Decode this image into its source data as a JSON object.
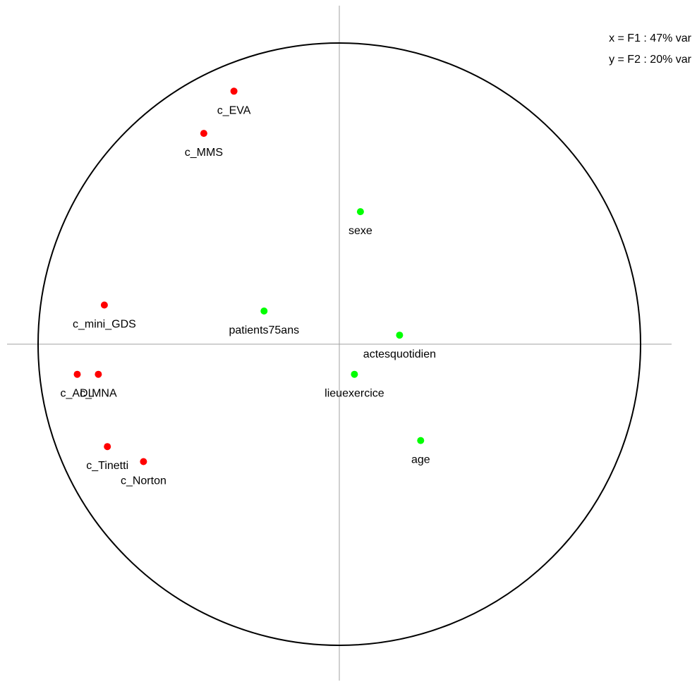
{
  "chart_data": {
    "type": "scatter",
    "title": "",
    "xlabel": "",
    "ylabel": "",
    "annotations": {
      "x_axis_info": "x = F1 : 47% var",
      "y_axis_info": "y = F2 : 20% var"
    },
    "xlim": [
      -1.0,
      1.0
    ],
    "ylim": [
      -1.0,
      1.0
    ],
    "correlation_circle": true,
    "grid": false,
    "colors": {
      "active": "#ff0000",
      "supplementary": "#00ff00",
      "circle": "#000000",
      "axes": "#a0a0a0"
    },
    "series": [
      {
        "group": "active",
        "points": [
          {
            "label": "c_EVA",
            "x": -0.35,
            "y": 0.84
          },
          {
            "label": "c_MMS",
            "x": -0.45,
            "y": 0.7
          },
          {
            "label": "c_mini_GDS",
            "x": -0.78,
            "y": 0.13
          },
          {
            "label": "c_ADL",
            "x": -0.87,
            "y": -0.1
          },
          {
            "label": "c_MNA",
            "x": -0.8,
            "y": -0.1
          },
          {
            "label": "c_Tinetti",
            "x": -0.77,
            "y": -0.34
          },
          {
            "label": "c_Norton",
            "x": -0.65,
            "y": -0.39
          }
        ]
      },
      {
        "group": "supplementary",
        "points": [
          {
            "label": "sexe",
            "x": 0.07,
            "y": 0.44
          },
          {
            "label": "patients75ans",
            "x": -0.25,
            "y": 0.11
          },
          {
            "label": "actesquotidien",
            "x": 0.2,
            "y": 0.03
          },
          {
            "label": "lieuexercice",
            "x": 0.05,
            "y": -0.1
          },
          {
            "label": "age",
            "x": 0.27,
            "y": -0.32
          }
        ]
      }
    ]
  }
}
